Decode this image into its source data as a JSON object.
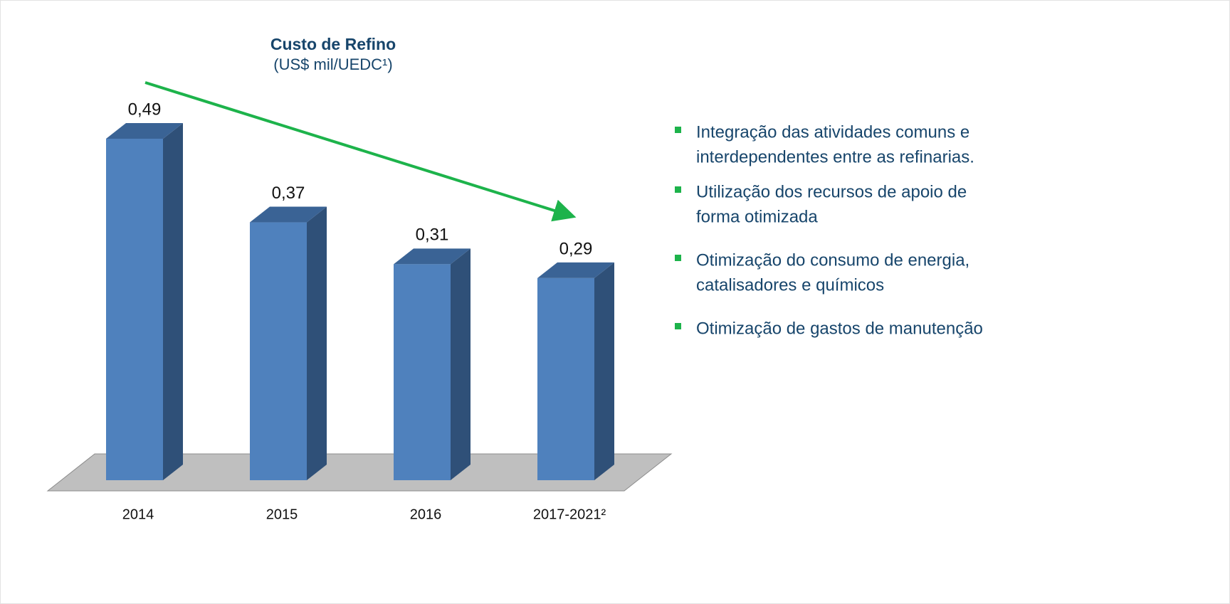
{
  "chart_data": {
    "type": "bar3d",
    "title": "Custo de Refino",
    "subtitle": "(US$ mil/UEDC¹)",
    "categories": [
      "2014",
      "2015",
      "2016",
      "2017-2021²"
    ],
    "values": [
      0.49,
      0.37,
      0.31,
      0.29
    ],
    "value_labels": [
      "0,49",
      "0,37",
      "0,31",
      "0,29"
    ],
    "color": "#4f81bd"
  },
  "bullets": [
    [
      "Integração das atividades comuns e",
      "interdependentes entre as refinarias."
    ],
    [
      "Utilização dos recursos de apoio de",
      "forma otimizada"
    ],
    [
      "Otimização do consumo de energia,",
      "catalisadores e químicos"
    ],
    [
      "Otimização de gastos de manutenção"
    ]
  ]
}
